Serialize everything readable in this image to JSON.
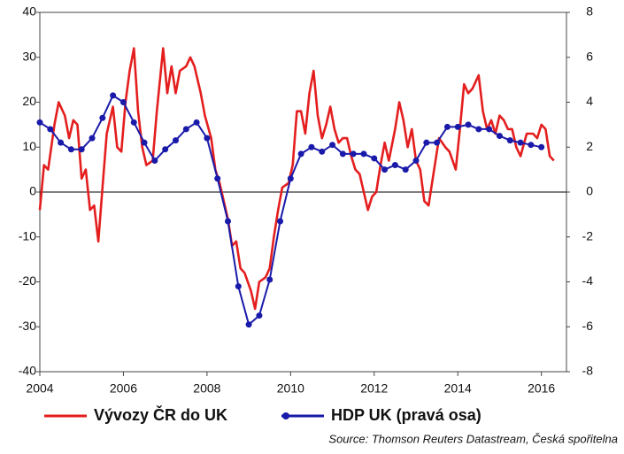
{
  "chart_data": {
    "type": "line",
    "xlim": [
      2004,
      2016.6
    ],
    "xticks": [
      2004,
      2006,
      2008,
      2010,
      2012,
      2014,
      2016
    ],
    "ylim": [
      -40,
      40
    ],
    "yticks": [
      -40,
      -30,
      -20,
      -10,
      0,
      10,
      20,
      30,
      40
    ],
    "y2lim": [
      -8,
      8
    ],
    "y2ticks": [
      -8,
      -6,
      -4,
      -2,
      0,
      2,
      4,
      6,
      8
    ],
    "source": "Source: Thomson Reuters Datastream, Česká spořitelna",
    "series": [
      {
        "name": "Vývozy ČR do UK",
        "color": "#e41e1e",
        "x": [
          2004.0,
          2004.1,
          2004.2,
          2004.35,
          2004.45,
          2004.6,
          2004.7,
          2004.8,
          2004.9,
          2005.0,
          2005.1,
          2005.2,
          2005.3,
          2005.4,
          2005.5,
          2005.6,
          2005.75,
          2005.85,
          2005.95,
          2006.05,
          2006.15,
          2006.25,
          2006.35,
          2006.45,
          2006.55,
          2006.7,
          2006.8,
          2006.95,
          2007.05,
          2007.15,
          2007.25,
          2007.35,
          2007.5,
          2007.6,
          2007.7,
          2007.85,
          2007.95,
          2008.1,
          2008.2,
          2008.3,
          2008.4,
          2008.5,
          2008.6,
          2008.7,
          2008.8,
          2008.9,
          2009.05,
          2009.15,
          2009.25,
          2009.4,
          2009.5,
          2009.6,
          2009.7,
          2009.8,
          2009.95,
          2010.05,
          2010.15,
          2010.25,
          2010.35,
          2010.45,
          2010.55,
          2010.65,
          2010.75,
          2010.85,
          2010.95,
          2011.05,
          2011.15,
          2011.25,
          2011.35,
          2011.45,
          2011.55,
          2011.65,
          2011.75,
          2011.85,
          2011.95,
          2012.05,
          2012.15,
          2012.25,
          2012.35,
          2012.5,
          2012.6,
          2012.7,
          2012.8,
          2012.9,
          2013.0,
          2013.1,
          2013.2,
          2013.3,
          2013.4,
          2013.55,
          2013.7,
          2013.8,
          2013.95,
          2014.05,
          2014.15,
          2014.25,
          2014.35,
          2014.5,
          2014.6,
          2014.7,
          2014.8,
          2014.9,
          2015.0,
          2015.1,
          2015.2,
          2015.3,
          2015.4,
          2015.5,
          2015.65,
          2015.8,
          2015.9,
          2016.0,
          2016.1,
          2016.2,
          2016.3
        ],
        "values": [
          -4,
          6,
          5,
          15,
          20,
          17,
          12,
          16,
          15,
          3,
          5,
          -4,
          -3,
          -11,
          1,
          13,
          19,
          10,
          9,
          20,
          27,
          32,
          18,
          10,
          6,
          7,
          18,
          32,
          22,
          28,
          22,
          27,
          28,
          30,
          28,
          22,
          17,
          12,
          5,
          2,
          -2,
          -6,
          -12,
          -11,
          -17,
          -18,
          -22,
          -26,
          -20,
          -19,
          -17,
          -10,
          -4,
          1,
          2,
          6,
          18,
          18,
          13,
          22,
          27,
          17,
          12,
          15,
          19,
          14,
          11,
          12,
          12,
          8,
          5,
          4,
          0,
          -4,
          -1,
          0,
          6,
          11,
          7,
          14,
          20,
          16,
          10,
          14,
          7,
          5,
          -2,
          -3,
          3,
          12,
          10,
          9,
          5,
          14,
          24,
          22,
          23,
          26,
          18,
          14,
          16,
          13,
          17,
          16,
          14,
          14,
          10,
          8,
          13,
          13,
          12,
          15,
          14,
          8,
          7
        ]
      },
      {
        "name": "HDP UK (pravá osa)",
        "color": "#1a1aaa",
        "axis": "y2",
        "x": [
          2004,
          2004.25,
          2004.5,
          2004.75,
          2005,
          2005.25,
          2005.5,
          2005.75,
          2006,
          2006.25,
          2006.5,
          2006.75,
          2007,
          2007.25,
          2007.5,
          2007.75,
          2008,
          2008.25,
          2008.5,
          2008.75,
          2009,
          2009.25,
          2009.5,
          2009.75,
          2010,
          2010.25,
          2010.5,
          2010.75,
          2011,
          2011.25,
          2011.5,
          2011.75,
          2012,
          2012.25,
          2012.5,
          2012.75,
          2013,
          2013.25,
          2013.5,
          2013.75,
          2014,
          2014.25,
          2014.5,
          2014.75,
          2015,
          2015.25,
          2015.5,
          2015.75,
          2016
        ],
        "values": [
          3.1,
          2.8,
          2.2,
          1.9,
          1.9,
          2.4,
          3.3,
          4.3,
          4.0,
          3.1,
          2.2,
          1.4,
          1.9,
          2.3,
          2.8,
          3.1,
          2.4,
          0.6,
          -1.3,
          -4.2,
          -5.9,
          -5.5,
          -3.9,
          -1.3,
          0.6,
          1.7,
          2.0,
          1.8,
          2.1,
          1.7,
          1.7,
          1.7,
          1.5,
          1.0,
          1.2,
          1.0,
          1.4,
          2.2,
          2.2,
          2.9,
          2.9,
          3.0,
          2.8,
          2.8,
          2.5,
          2.3,
          2.2,
          2.1,
          2.0
        ]
      }
    ]
  }
}
